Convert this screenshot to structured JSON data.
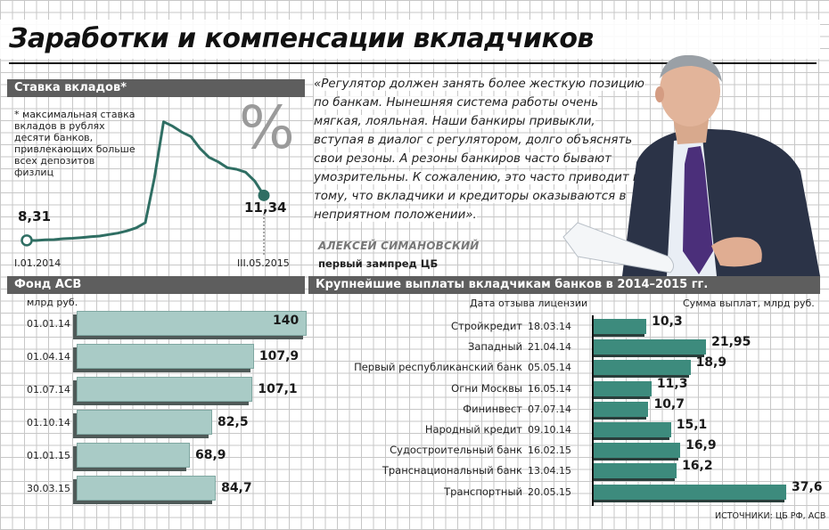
{
  "title": "Заработки и компенсации вкладчиков",
  "rate_panel": {
    "header": "Ставка вкладов*",
    "note": "* максимальная ставка вкладов в рублях десяти банков, привлекающих больше всех депозитов физлиц",
    "percent_sign": "%",
    "start_value": "8,31",
    "end_value": "11,34",
    "start_date": "I.01.2014",
    "end_date": "III.05.2015"
  },
  "quote": {
    "text": "«Регулятор должен занять более жесткую позицию по банкам. Нынешняя система работы очень мягкая, лояльная. Наши банкиры привыкли, вступая в диалог с регулятором, долго объяснять свои резоны. А резоны банкиров часто бывают умозрительны. К сожалению, это часто приводит к тому, что вкладчики и кредиторы оказываются в неприятном положении».",
    "author": "АЛЕКСЕЙ СИМАНОВСКИЙ",
    "role": "первый зампред ЦБ"
  },
  "fund_panel": {
    "header": "Фонд АСВ",
    "unit": "млрд руб."
  },
  "payouts_panel": {
    "header": "Крупнейшие выплаты вкладчикам банков в 2014–2015 гг.",
    "col_date": "Дата отзыва лицензии",
    "col_sum": "Сумма выплат, млрд руб."
  },
  "source": "ИСТОЧНИКИ: ЦБ РФ, АСВ",
  "colors": {
    "fund_bar": "#a9cbc6",
    "payout_bar": "#3d8b7d",
    "line": "#2f6e63",
    "header_bg": "#5e5e5e"
  },
  "chart_data": [
    {
      "type": "line",
      "title": "Ставка вкладов*",
      "series": [
        {
          "values": [
            8.31,
            8.3,
            8.35,
            8.36,
            8.42,
            8.45,
            8.5,
            8.55,
            8.6,
            8.7,
            8.8,
            8.95,
            9.15,
            9.5,
            12.5,
            16.3,
            16.0,
            15.6,
            15.3,
            14.5,
            13.9,
            13.6,
            13.2,
            13.1,
            12.9,
            12.3,
            11.34
          ]
        }
      ],
      "x_labels": [
        "I.01.2014",
        "III.05.2015"
      ],
      "annotations": [
        "8,31",
        "11,34"
      ]
    },
    {
      "type": "bar",
      "title": "Фонд АСВ",
      "ylabel": "млрд руб.",
      "categories": [
        "01.01.14",
        "01.04.14",
        "01.07.14",
        "01.10.14",
        "01.01.15",
        "30.03.15"
      ],
      "values": [
        140,
        107.9,
        107.1,
        82.5,
        68.9,
        84.7
      ],
      "labels": [
        "140",
        "107,9",
        "107,1",
        "82,5",
        "68,9",
        "84,7"
      ]
    },
    {
      "type": "bar",
      "title": "Крупнейшие выплаты вкладчикам банков в 2014–2015 гг.",
      "xlabel": "Сумма выплат, млрд руб.",
      "categories": [
        "Стройкредит",
        "Западный",
        "Первый республиканский банк",
        "Огни Москвы",
        "Фининвест",
        "Народный кредит",
        "Судостроительный банк",
        "Транснациональный банк",
        "Транспортный"
      ],
      "dates": [
        "18.03.14",
        "21.04.14",
        "05.05.14",
        "16.05.14",
        "07.07.14",
        "09.10.14",
        "16.02.15",
        "13.04.15",
        "20.05.15"
      ],
      "values": [
        10.3,
        21.95,
        18.9,
        11.3,
        10.7,
        15.1,
        16.9,
        16.2,
        37.6
      ],
      "labels": [
        "10,3",
        "21,95",
        "18,9",
        "11,3",
        "10,7",
        "15,1",
        "16,9",
        "16,2",
        "37,6"
      ]
    }
  ]
}
